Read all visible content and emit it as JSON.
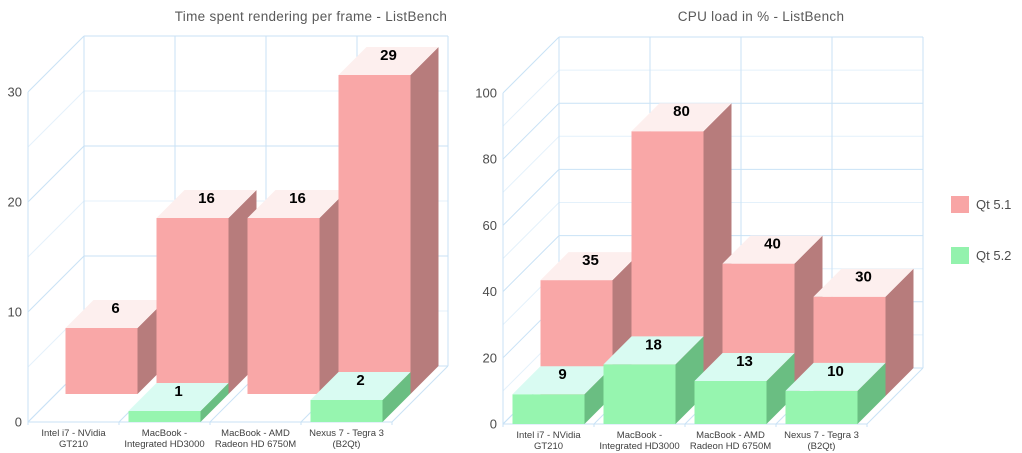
{
  "slide": {
    "background": "#ffffff"
  },
  "chart_data": [
    {
      "type": "bar",
      "projection": "3d",
      "title": "Time spent rendering per frame - ListBench",
      "categories": [
        "Intel i7 - NVidia GT210",
        "MacBook - Integrated HD3000",
        "MacBook - AMD Radeon HD 6750M",
        "Nexus 7 - Tegra 3 (B2Qt)"
      ],
      "series": [
        {
          "name": "Qt 5.1",
          "values": [
            6,
            16,
            16,
            29
          ]
        },
        {
          "name": "Qt 5.2",
          "values": [
            0,
            1,
            0,
            2
          ]
        }
      ],
      "ylim": [
        0,
        30
      ],
      "ytick_major": 10,
      "ytick_minor": 5,
      "ytick_labels": [
        "0",
        "10",
        "20",
        "30"
      ],
      "grid": true,
      "value_labels": true,
      "xlabel": "",
      "ylabel": ""
    },
    {
      "type": "bar",
      "projection": "3d",
      "title": "CPU load in % - ListBench",
      "categories": [
        "Intel i7 - NVidia GT210",
        "MacBook - Integrated HD3000",
        "MacBook - AMD Radeon HD 6750M",
        "Nexus 7 - Tegra 3 (B2Qt)"
      ],
      "series": [
        {
          "name": "Qt 5.1",
          "values": [
            35,
            80,
            40,
            30
          ]
        },
        {
          "name": "Qt 5.2",
          "values": [
            9,
            18,
            13,
            10
          ]
        }
      ],
      "ylim": [
        0,
        100
      ],
      "ytick_major": 20,
      "ytick_minor": 10,
      "ytick_labels": [
        "0",
        "20",
        "40",
        "60",
        "80",
        "100"
      ],
      "grid": true,
      "value_labels": true,
      "xlabel": "",
      "ylabel": ""
    }
  ],
  "categories_display": [
    [
      "Intel i7 - NVidia",
      "GT210"
    ],
    [
      "MacBook -",
      "Integrated HD3000"
    ],
    [
      "MacBook - AMD",
      "Radeon HD 6750M"
    ],
    [
      "Nexus 7 - Tegra 3",
      "(B2Qt)"
    ]
  ],
  "legend": {
    "position": "right",
    "items": [
      {
        "label": "Qt 5.1",
        "color": "#f8a5a5"
      },
      {
        "label": "Qt 5.2",
        "color": "#93f2ad"
      }
    ]
  },
  "colors": {
    "series": [
      {
        "front": "#f9a7a7",
        "side": "#b77c7c",
        "top": "#fdefee"
      },
      {
        "front": "#96f5af",
        "side": "#6abe82",
        "top": "#d9fbf2"
      }
    ],
    "grid_major": "#c9e2f6",
    "grid_minor": "#e4f1fb",
    "axis_text": "#4d4d4d",
    "title_text": "#595959",
    "category_text": "#404040",
    "value_label": "#000000",
    "background": "#ffffff"
  }
}
